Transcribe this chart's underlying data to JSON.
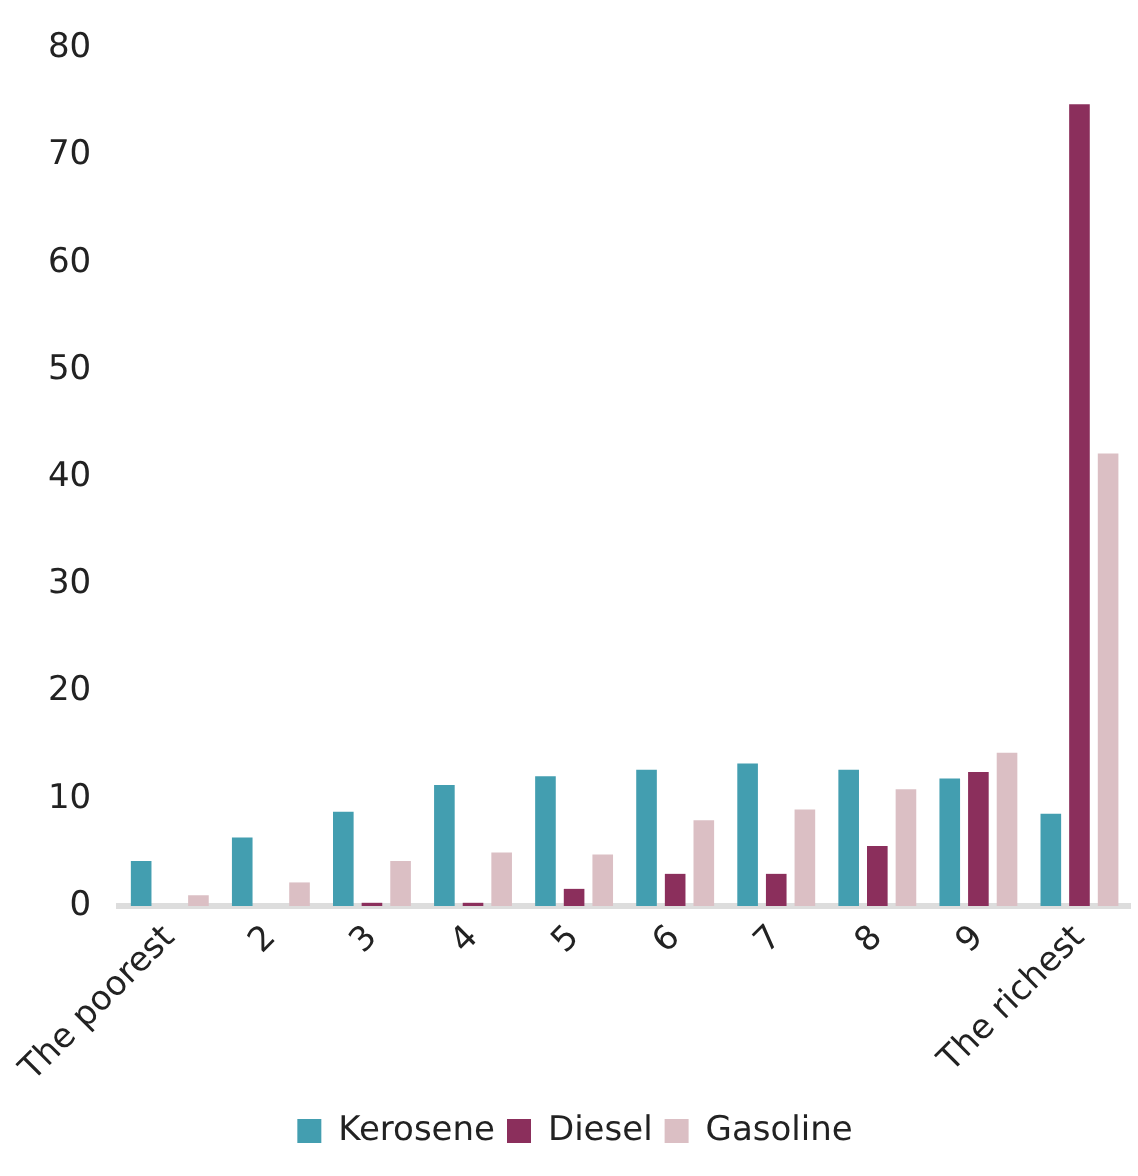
{
  "chart_data": {
    "type": "bar",
    "categories": [
      "The poorest",
      "2",
      "3",
      "4",
      "5",
      "6",
      "7",
      "8",
      "9",
      "The richest"
    ],
    "series": [
      {
        "name": "Kerosene",
        "color": "#439eb0",
        "values": [
          4.2,
          6.4,
          8.8,
          11.3,
          12.1,
          12.7,
          13.3,
          12.7,
          11.9,
          8.6
        ]
      },
      {
        "name": "Diesel",
        "color": "#8b2f5c",
        "values": [
          0,
          0,
          0.3,
          0.3,
          1.6,
          3.0,
          3.0,
          5.6,
          12.5,
          74.8
        ]
      },
      {
        "name": "Gasoline",
        "color": "#dbbfc4",
        "values": [
          1.0,
          2.2,
          4.2,
          5.0,
          4.8,
          8.0,
          9.0,
          10.9,
          14.3,
          42.2
        ]
      }
    ],
    "ylim": [
      0,
      80
    ],
    "yticks": [
      0,
      10,
      20,
      30,
      40,
      50,
      60,
      70,
      80
    ],
    "grid": false,
    "legend": "bottom"
  }
}
